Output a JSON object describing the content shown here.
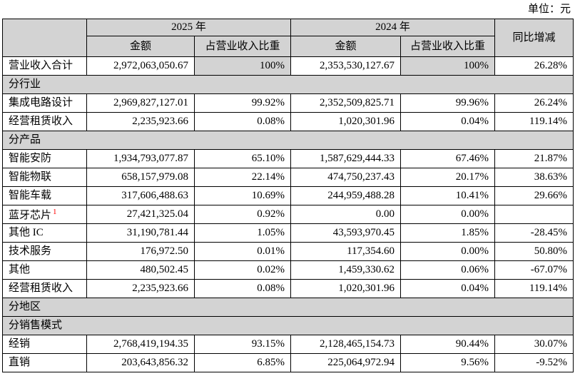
{
  "unit_label": "单位：元",
  "colors": {
    "header_bg": "#d3d3d3",
    "border": "#000000",
    "footnote_red": "#ff0000"
  },
  "table": {
    "col_headers": {
      "year_2025": "2025 年",
      "year_2024": "2024 年",
      "amount_2025": "金额",
      "pct_2025": "占营业收入比重",
      "amount_2024": "金额",
      "pct_2024": "占营业收入比重",
      "yoy": "同比增减"
    },
    "rows": [
      {
        "type": "data",
        "label": "营业收入合计",
        "a2025": "2,972,063,050.67",
        "p2025": "100%",
        "a2024": "2,353,530,127.67",
        "p2024": "100%",
        "yoy": "26.28%",
        "pct_gray": true
      },
      {
        "type": "section",
        "label": "分行业"
      },
      {
        "type": "data",
        "label": "集成电路设计",
        "a2025": "2,969,827,127.01",
        "p2025": "99.92%",
        "a2024": "2,352,509,825.71",
        "p2024": "99.96%",
        "yoy": "26.24%"
      },
      {
        "type": "data",
        "label": "经营租赁收入",
        "a2025": "2,235,923.66",
        "p2025": "0.08%",
        "a2024": "1,020,301.96",
        "p2024": "0.04%",
        "yoy": "119.14%"
      },
      {
        "type": "section",
        "label": "分产品"
      },
      {
        "type": "data",
        "label": "智能安防",
        "a2025": "1,934,793,077.87",
        "p2025": "65.10%",
        "a2024": "1,587,629,444.33",
        "p2024": "67.46%",
        "yoy": "21.87%"
      },
      {
        "type": "data",
        "label": "智能物联",
        "a2025": "658,157,979.08",
        "p2025": "22.14%",
        "a2024": "474,750,237.43",
        "p2024": "20.17%",
        "yoy": "38.63%"
      },
      {
        "type": "data",
        "label": "智能车载",
        "a2025": "317,606,488.63",
        "p2025": "10.69%",
        "a2024": "244,959,488.28",
        "p2024": "10.41%",
        "yoy": "29.66%"
      },
      {
        "type": "data",
        "label": "蓝牙芯片",
        "superscript": "1",
        "a2025": "27,421,325.04",
        "p2025": "0.92%",
        "a2024": "0.00",
        "p2024": "0.00%",
        "yoy": ""
      },
      {
        "type": "data",
        "label": "其他 IC",
        "a2025": "31,190,781.44",
        "p2025": "1.05%",
        "a2024": "43,593,970.45",
        "p2024": "1.85%",
        "yoy": "-28.45%"
      },
      {
        "type": "data",
        "label": "技术服务",
        "a2025": "176,972.50",
        "p2025": "0.01%",
        "a2024": "117,354.60",
        "p2024": "0.00%",
        "yoy": "50.80%"
      },
      {
        "type": "data",
        "label": "其他",
        "a2025": "480,502.45",
        "p2025": "0.02%",
        "a2024": "1,459,330.62",
        "p2024": "0.06%",
        "yoy": "-67.07%"
      },
      {
        "type": "data",
        "label": "经营租赁收入",
        "a2025": "2,235,923.66",
        "p2025": "0.08%",
        "a2024": "1,020,301.96",
        "p2024": "0.04%",
        "yoy": "119.14%"
      },
      {
        "type": "section",
        "label": "分地区"
      },
      {
        "type": "section",
        "label": "分销售模式"
      },
      {
        "type": "data",
        "label": "经销",
        "a2025": "2,768,419,194.35",
        "p2025": "93.15%",
        "a2024": "2,128,465,154.73",
        "p2024": "90.44%",
        "yoy": "30.07%"
      },
      {
        "type": "data",
        "label": "直销",
        "a2025": "203,643,856.32",
        "p2025": "6.85%",
        "a2024": "225,064,972.94",
        "p2024": "9.56%",
        "yoy": "-9.52%"
      }
    ]
  }
}
